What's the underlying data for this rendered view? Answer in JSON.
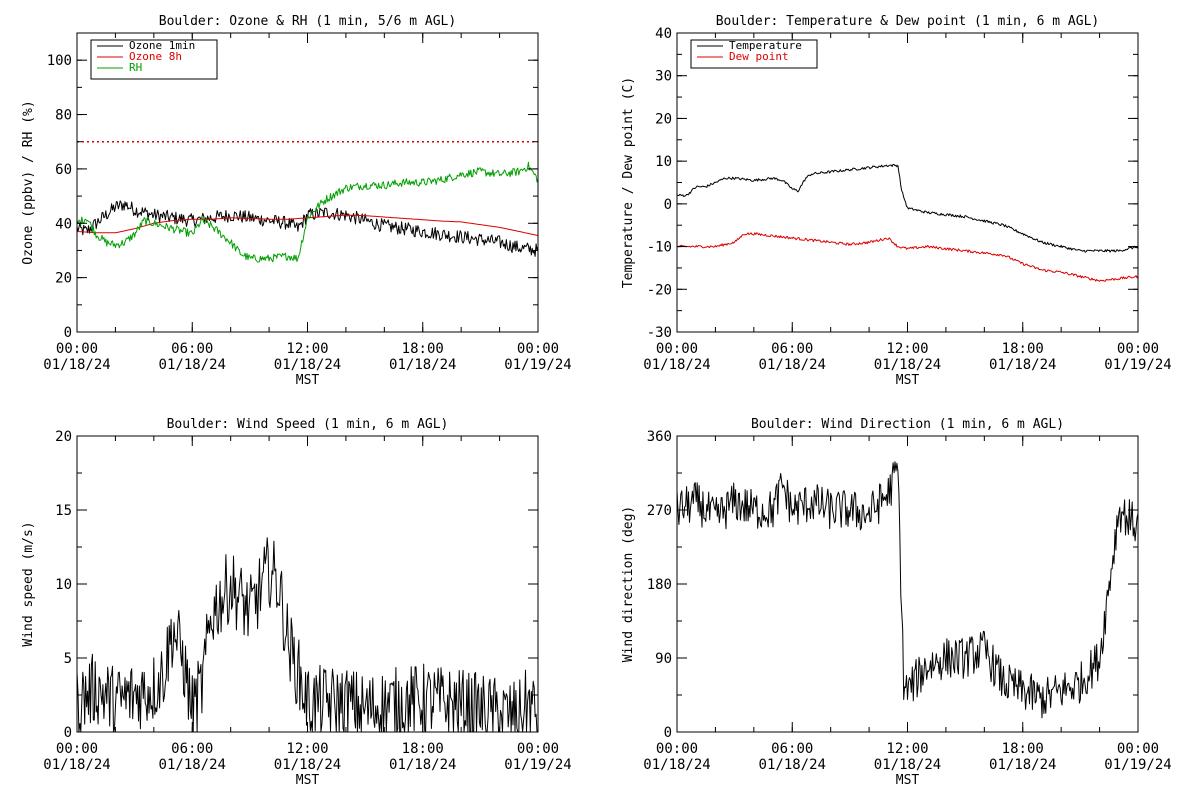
{
  "chart_data": [
    {
      "type": "line",
      "title": "Boulder: Ozone & RH (1 min, 5/6 m AGL)",
      "xlabel": "MST",
      "ylabel": "Ozone (ppbv) / RH (%)",
      "ylim": [
        0,
        110
      ],
      "yticks": [
        0,
        20,
        40,
        60,
        80,
        100
      ],
      "xticks": [
        "00:00",
        "06:00",
        "12:00",
        "18:00",
        "00:00"
      ],
      "xticks_date": [
        "01/18/24",
        "01/18/24",
        "01/18/24",
        "01/18/24",
        "01/19/24"
      ],
      "x_hours": [
        0,
        24
      ],
      "legend_position": "top-left",
      "reference_line": {
        "value": 70,
        "style": "dotted",
        "color": "#dd0000"
      },
      "series": [
        {
          "name": "Ozone 1min",
          "color": "#000000",
          "noise": 2.5,
          "x": [
            0,
            0.5,
            1,
            1.5,
            2,
            2.5,
            3,
            3.5,
            4,
            5,
            6,
            7,
            8,
            9,
            10,
            11,
            11.5,
            12,
            13,
            14,
            15,
            16,
            17,
            18,
            19,
            20,
            21,
            22,
            23,
            24
          ],
          "y": [
            38,
            37,
            40,
            43,
            46,
            47,
            45,
            44,
            43,
            42,
            41,
            42,
            43,
            42,
            41,
            40,
            38,
            43,
            44,
            43,
            41,
            39,
            38,
            37,
            36,
            35,
            34,
            33,
            31,
            30
          ]
        },
        {
          "name": "Ozone 8h",
          "color": "#dd0000",
          "noise": 0,
          "x": [
            0,
            1,
            2,
            3,
            4,
            5,
            6,
            7,
            8,
            9,
            10,
            11,
            12,
            13,
            14,
            15,
            16,
            17,
            18,
            19,
            20,
            21,
            22,
            23,
            24
          ],
          "y": [
            37,
            36.5,
            36.5,
            38,
            40,
            41,
            41.5,
            41.5,
            42,
            41.8,
            41.5,
            41.5,
            42,
            42.5,
            43,
            42.8,
            42.3,
            41.8,
            41.3,
            40.8,
            40.5,
            39.5,
            38.5,
            37,
            35.5
          ]
        },
        {
          "name": "RH",
          "color": "#00a000",
          "noise": 1.5,
          "x": [
            0,
            0.5,
            1,
            1.5,
            2,
            2.5,
            3,
            3.5,
            4,
            5,
            6,
            6.5,
            7,
            8,
            8.5,
            9,
            10,
            11,
            11.5,
            12,
            12.5,
            13,
            14,
            15,
            16,
            17,
            18,
            19,
            20,
            21,
            22,
            23,
            23.5,
            24
          ],
          "y": [
            40,
            42,
            36,
            33,
            32,
            33,
            36,
            41,
            40,
            38,
            36,
            41,
            39,
            33,
            29,
            27,
            27,
            28,
            27,
            42,
            46,
            49,
            53,
            54,
            54,
            55,
            55,
            56,
            58,
            59,
            58,
            59,
            61,
            56
          ]
        }
      ]
    },
    {
      "type": "line",
      "title": "Boulder: Temperature & Dew point (1 min, 6 m AGL)",
      "xlabel": "MST",
      "ylabel": "Temperature / Dew point (C)",
      "ylim": [
        -30,
        40
      ],
      "yticks": [
        -30,
        -20,
        -10,
        0,
        10,
        20,
        30,
        40
      ],
      "xticks": [
        "00:00",
        "06:00",
        "12:00",
        "18:00",
        "00:00"
      ],
      "xticks_date": [
        "01/18/24",
        "01/18/24",
        "01/18/24",
        "01/18/24",
        "01/19/24"
      ],
      "x_hours": [
        0,
        24
      ],
      "legend_position": "top-left",
      "series": [
        {
          "name": "Temperature",
          "color": "#000000",
          "noise": 0.3,
          "x": [
            0,
            0.5,
            1,
            1.5,
            2,
            2.5,
            3,
            4,
            5,
            5.5,
            6,
            6.3,
            6.7,
            7,
            8,
            9,
            10,
            11,
            11.5,
            11.7,
            12,
            13,
            14,
            15,
            16,
            17,
            18,
            19,
            20,
            21,
            22,
            23,
            24
          ],
          "y": [
            2,
            2,
            4,
            4,
            5,
            6,
            6,
            5.5,
            6,
            5.5,
            3.5,
            3,
            6,
            7,
            7.5,
            8,
            8.5,
            9,
            9,
            3,
            -1,
            -2,
            -2.5,
            -3,
            -4,
            -5,
            -7,
            -9,
            -10,
            -11,
            -11,
            -11,
            -10
          ]
        },
        {
          "name": "Dew point",
          "color": "#dd0000",
          "noise": 0.3,
          "x": [
            0,
            1,
            2,
            3,
            3.5,
            4,
            5,
            6,
            7,
            8,
            9,
            10,
            11,
            11.5,
            12,
            13,
            14,
            15,
            16,
            17,
            18,
            19,
            20,
            21,
            22,
            23,
            24
          ],
          "y": [
            -10,
            -10,
            -10,
            -9,
            -7,
            -7,
            -7.5,
            -8,
            -8.5,
            -9,
            -9.5,
            -9,
            -8,
            -10,
            -10.5,
            -10,
            -10.5,
            -11,
            -11.5,
            -12,
            -14,
            -15.5,
            -16,
            -17,
            -18,
            -17.5,
            -17
          ]
        }
      ]
    },
    {
      "type": "line",
      "title": "Boulder: Wind Speed (1 min, 6 m AGL)",
      "xlabel": "MST",
      "ylabel": "Wind speed (m/s)",
      "ylim": [
        0,
        20
      ],
      "yticks": [
        0,
        5,
        10,
        15,
        20
      ],
      "xticks": [
        "00:00",
        "06:00",
        "12:00",
        "18:00",
        "00:00"
      ],
      "xticks_date": [
        "01/18/24",
        "01/18/24",
        "01/18/24",
        "01/18/24",
        "01/19/24"
      ],
      "x_hours": [
        0,
        24
      ],
      "series": [
        {
          "name": "Wind speed",
          "color": "#000000",
          "noise": 2.5,
          "x": [
            0,
            1,
            2,
            3,
            4,
            4.5,
            5,
            5.5,
            6,
            6.5,
            7,
            7.5,
            8,
            8.5,
            9,
            10,
            10.5,
            11,
            11.5,
            12,
            13,
            14,
            15,
            16,
            17,
            18,
            19,
            20,
            21,
            22,
            23,
            23.5,
            24
          ],
          "y": [
            2,
            3,
            2,
            2.5,
            3,
            4,
            7,
            5,
            1.5,
            3,
            8,
            9,
            10,
            9,
            8,
            11,
            10,
            6,
            4,
            2,
            2,
            2,
            1.5,
            1.8,
            2,
            2.2,
            2,
            1.8,
            1.5,
            1.2,
            1,
            2,
            1
          ]
        }
      ]
    },
    {
      "type": "line",
      "title": "Boulder: Wind Direction (1 min, 6 m AGL)",
      "xlabel": "MST",
      "ylabel": "Wind direction (deg)",
      "ylim": [
        0,
        360
      ],
      "yticks": [
        0,
        90,
        180,
        270,
        360
      ],
      "xticks": [
        "00:00",
        "06:00",
        "12:00",
        "18:00",
        "00:00"
      ],
      "xticks_date": [
        "01/18/24",
        "01/18/24",
        "01/18/24",
        "01/18/24",
        "01/19/24"
      ],
      "x_hours": [
        0,
        24
      ],
      "series": [
        {
          "name": "Wind direction",
          "color": "#000000",
          "noise": 25,
          "x": [
            0,
            1,
            2,
            3,
            4,
            5,
            5.5,
            6,
            7,
            8,
            9,
            10,
            11,
            11.5,
            11.8,
            12,
            13,
            14,
            15,
            16,
            17,
            18,
            19,
            20,
            21,
            22,
            23,
            24
          ],
          "y": [
            270,
            280,
            260,
            280,
            270,
            270,
            300,
            270,
            280,
            270,
            270,
            265,
            290,
            320,
            60,
            50,
            80,
            90,
            90,
            100,
            60,
            50,
            40,
            50,
            60,
            90,
            270,
            250
          ]
        }
      ]
    }
  ]
}
